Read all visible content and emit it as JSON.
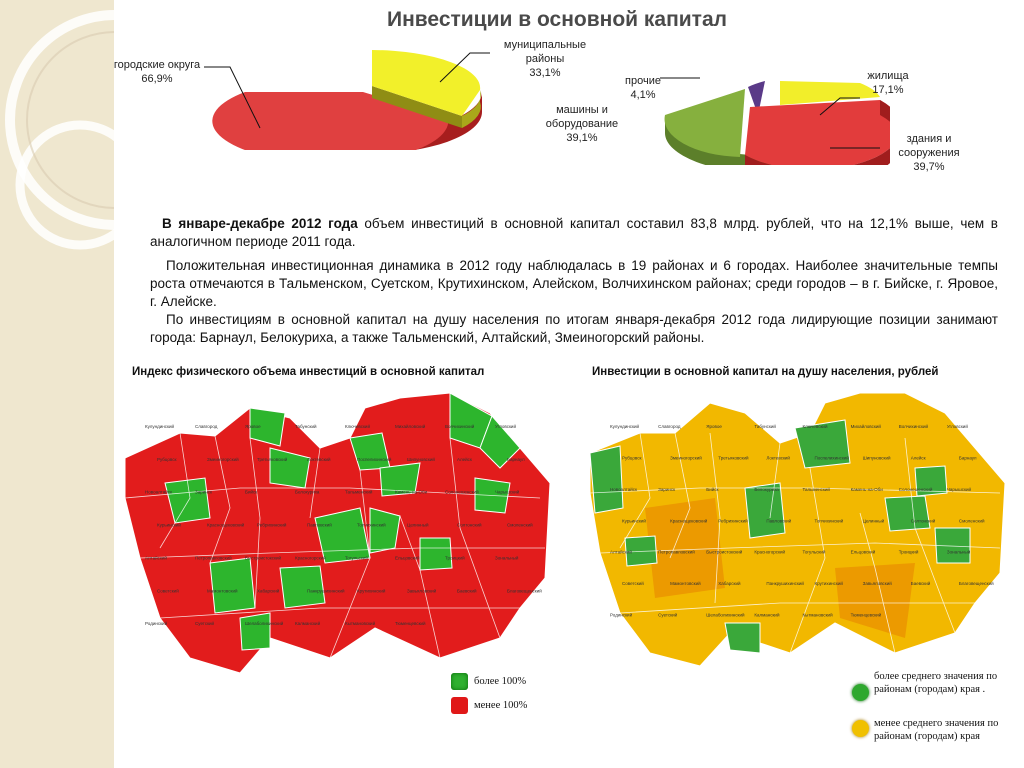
{
  "title": "Инвестиции в основной капитал",
  "pie1": {
    "labels": {
      "gorod": [
        "городские округа",
        "66,9%"
      ],
      "mun": [
        "муниципальные",
        "районы",
        "33,1%"
      ]
    }
  },
  "pie2": {
    "labels": {
      "zhil": [
        "жилища",
        "17,1%"
      ],
      "zdan": [
        "здания и",
        "сооружения",
        "39,7%"
      ],
      "mash": [
        "машины и",
        "оборудование",
        "39,1%"
      ],
      "proch": [
        "прочие",
        "4,1%"
      ]
    }
  },
  "text": {
    "p1_bold": "В январе-декабре 2012 года",
    "p1_rest": " объем инвестиций в основной капитал составил 83,8 млрд. рублей, что на 12,1% выше, чем в аналогичном периоде 2011 года.",
    "p2": "Положительная инвестиционная динамика в 2012 году наблюдалась в 19 районах и 6 городах. Наиболее значительные темпы роста отмечаются в Тальменском, Суетском, Крутихинском, Алейском, Волчихинском районах; среди городов – в г. Бийске, г. Яровое, г. Алейске.",
    "p3": "По инвестициям в основной капитал на душу населения по итогам января-декабря 2012 года лидирующие позиции занимают города: Барнаул, Белокуриха, а также Тальменский, Алтайский, Змеиногорский районы."
  },
  "map1": {
    "title": "Индекс физического объема инвестиций в основной капитал",
    "legend": [
      "более 100%",
      "менее 100%"
    ],
    "colors": [
      "#2fb02f",
      "#e01818"
    ]
  },
  "map2": {
    "title": "Инвестиции в основной капитал на душу населения, рублей",
    "legend": [
      "более среднего значения по районам (городам) края .",
      "менее среднего значения по районам (городам) края"
    ],
    "colors": [
      "#2fa82f",
      "#f0c000"
    ]
  },
  "places": [
    "Кулундинский",
    "Славгород",
    "Яровое",
    "Табунский",
    "Ключевский",
    "Михайловский",
    "Волчихинский",
    "Угловский",
    "Рубцовск",
    "Змеиногорский",
    "Третьяковский",
    "Локтевский",
    "Поспелихинский",
    "Шипуновский",
    "Алейск",
    "Барнаул",
    "Новоалтайск",
    "Заринск",
    "Бийск",
    "Белокуриха",
    "Тальменский",
    "Камень-на-Оби",
    "Солонешенский",
    "Чарышский",
    "Курьинский",
    "Краснощековский",
    "Ребрихинский",
    "Павловский",
    "Топчихинский",
    "Целинный",
    "Солтонский",
    "Смоленский",
    "Алтайский",
    "Петропавловский",
    "Быстроистокский",
    "Красногорский",
    "Тогульский",
    "Ельцовский",
    "Троицкий",
    "Зональный",
    "Советский",
    "Мамонтовский",
    "Хабарский",
    "Панкрушихинский",
    "Крутихинский",
    "Завьяловский",
    "Баевский",
    "Благовещенский",
    "Родинский",
    "Суетский",
    "Шелаболихинский",
    "Калманский",
    "Кытмановский",
    "Тюменцевский"
  ]
}
